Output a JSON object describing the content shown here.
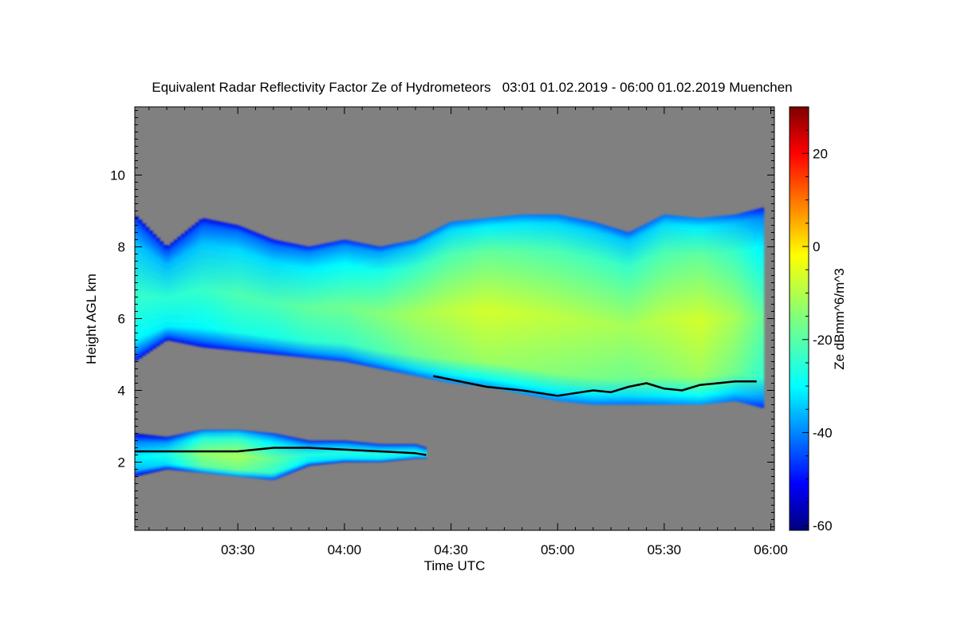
{
  "chart_data": {
    "type": "heatmap",
    "title": "Equivalent Radar Reflectivity Factor Ze of Hydrometeors   03:01 01.02.2019 - 06:00 01.02.2019 Muenchen",
    "xlabel": "Time UTC",
    "ylabel": "Height AGL km",
    "x_range": [
      "03:01",
      "06:01"
    ],
    "x_ticks": [
      "03:30",
      "04:00",
      "04:30",
      "05:00",
      "05:30",
      "06:00"
    ],
    "ylim": [
      0.1,
      11.9
    ],
    "y_ticks": [
      2,
      4,
      6,
      8,
      10
    ],
    "background_color": "#808080",
    "colorbar": {
      "label": "Ze dBmm^6/m^3",
      "range": [
        -61,
        30
      ],
      "ticks": [
        20,
        0,
        -20,
        -40,
        -60
      ],
      "colormap": "jet"
    },
    "layers": [
      {
        "time": [
          "03:01",
          "03:10",
          "03:20",
          "03:30",
          "03:40",
          "03:50",
          "04:00",
          "04:10",
          "04:20",
          "04:30",
          "04:40",
          "04:50",
          "05:00",
          "05:10",
          "05:20",
          "05:30",
          "05:40",
          "05:50",
          "05:58"
        ],
        "top_km": [
          8.9,
          8.0,
          8.8,
          8.6,
          8.2,
          8.0,
          8.2,
          8.0,
          8.2,
          8.7,
          8.8,
          8.9,
          8.9,
          8.7,
          8.4,
          8.9,
          8.8,
          8.9,
          9.1
        ],
        "base_km": [
          4.8,
          5.4,
          5.2,
          5.1,
          5.0,
          4.9,
          4.8,
          4.6,
          4.4,
          4.2,
          4.1,
          3.9,
          3.7,
          3.6,
          3.6,
          3.6,
          3.6,
          3.7,
          3.5
        ],
        "peak_dBZ": [
          -22,
          -23,
          -22,
          -20,
          -20,
          -18,
          -17,
          -15,
          -12,
          -10,
          -8,
          -9,
          -10,
          -11,
          -12,
          -10,
          -8,
          -12,
          -18
        ]
      },
      {
        "time": [
          "03:01",
          "03:10",
          "03:20",
          "03:30",
          "03:40",
          "03:50",
          "04:00",
          "04:10",
          "04:20",
          "04:23"
        ],
        "top_km": [
          2.8,
          2.7,
          2.9,
          2.9,
          2.8,
          2.6,
          2.6,
          2.5,
          2.5,
          2.4
        ],
        "base_km": [
          1.6,
          1.8,
          1.7,
          1.6,
          1.5,
          1.9,
          2.0,
          2.0,
          2.1,
          2.1
        ],
        "peak_dBZ": [
          -28,
          -25,
          -14,
          -12,
          -18,
          -24,
          -24,
          -24,
          -25,
          -27
        ]
      }
    ],
    "melting_layer_line": [
      {
        "time": [
          "04:25",
          "04:30",
          "04:40",
          "04:50",
          "05:00",
          "05:10",
          "05:15",
          "05:20",
          "05:25",
          "05:30",
          "05:35",
          "05:40",
          "05:50",
          "05:56"
        ],
        "height_km": [
          4.4,
          4.3,
          4.1,
          4.0,
          3.85,
          4.0,
          3.95,
          4.1,
          4.2,
          4.05,
          4.0,
          4.15,
          4.25,
          4.25
        ]
      },
      {
        "time": [
          "03:01",
          "03:10",
          "03:20",
          "03:30",
          "03:40",
          "03:50",
          "04:00",
          "04:10",
          "04:20",
          "04:23"
        ],
        "height_km": [
          2.3,
          2.3,
          2.3,
          2.3,
          2.4,
          2.4,
          2.35,
          2.3,
          2.25,
          2.2
        ]
      }
    ]
  }
}
